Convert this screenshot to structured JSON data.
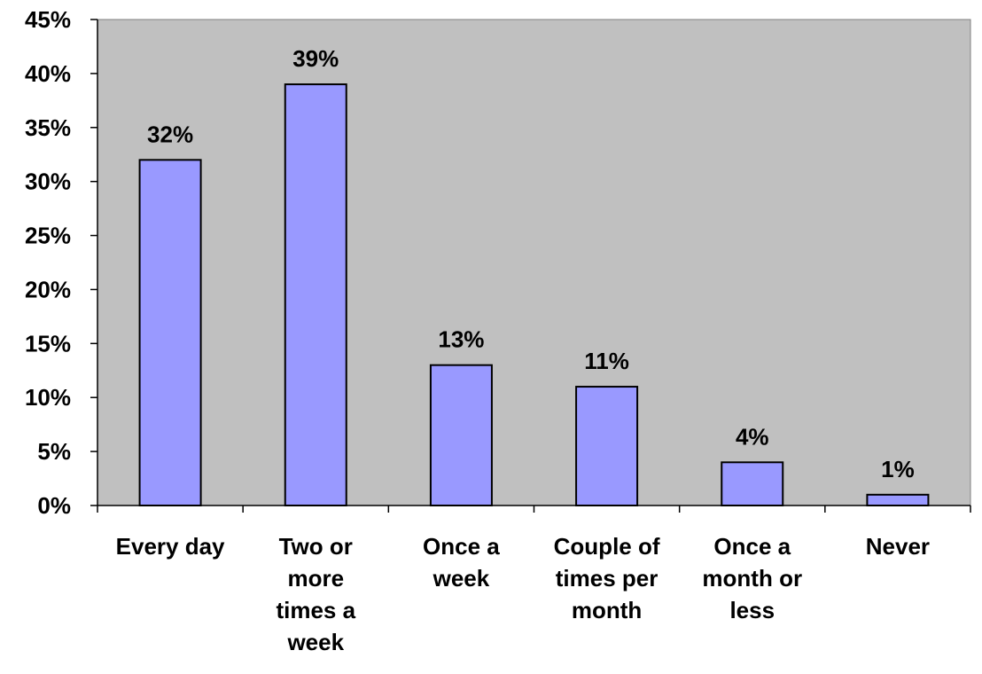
{
  "chart_data": {
    "type": "bar",
    "categories": [
      [
        "Every day"
      ],
      [
        "Two or",
        "more",
        "times a",
        "week"
      ],
      [
        "Once a",
        "week"
      ],
      [
        "Couple of",
        "times per",
        "month"
      ],
      [
        "Once a",
        "month or",
        "less"
      ],
      [
        "Never"
      ]
    ],
    "values": [
      32,
      39,
      13,
      11,
      4,
      1
    ],
    "data_labels": [
      "32%",
      "39%",
      "13%",
      "11%",
      "4%",
      "1%"
    ],
    "yticks": [
      "0%",
      "5%",
      "10%",
      "15%",
      "20%",
      "25%",
      "30%",
      "35%",
      "40%",
      "45%"
    ],
    "ylim": [
      0,
      45
    ],
    "ytick_step": 5,
    "title": "",
    "xlabel": "",
    "ylabel": "",
    "grid": false,
    "legend": "none",
    "colors": {
      "plot_background": "#c0c0c0",
      "bar_fill": "#9999ff",
      "bar_stroke": "#000000"
    }
  }
}
